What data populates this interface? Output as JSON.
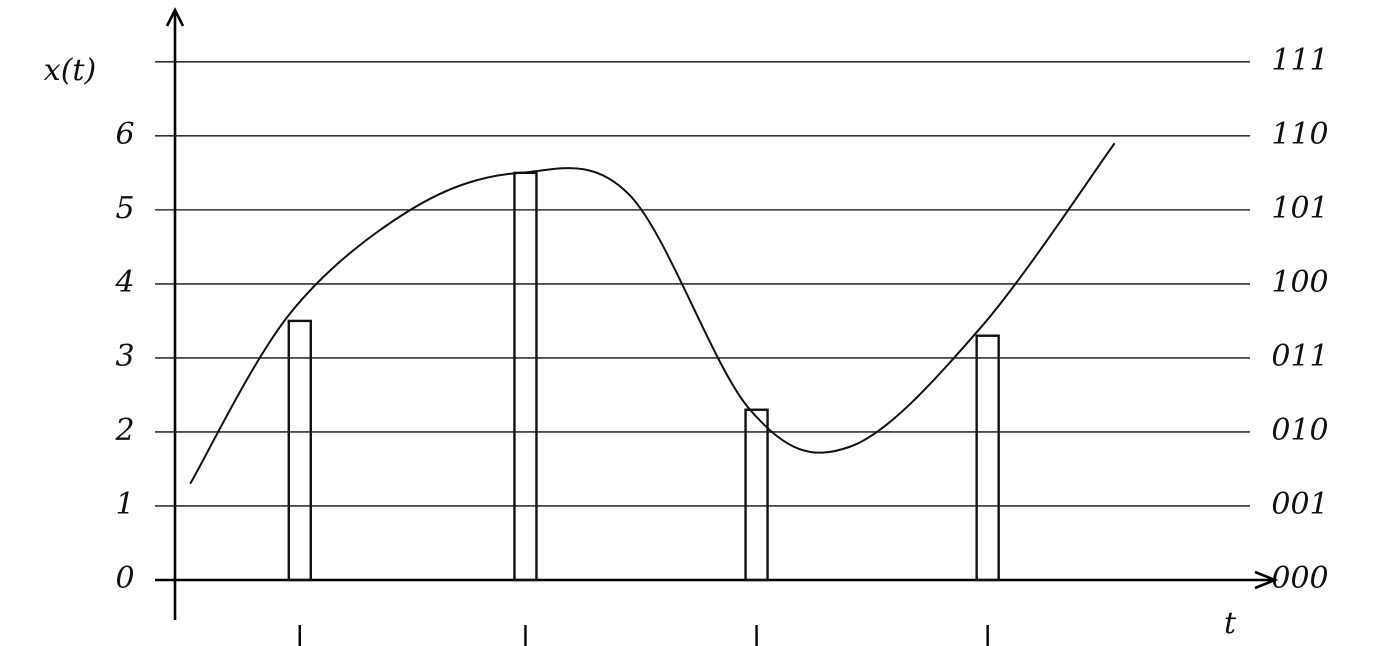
{
  "chart_data": {
    "type": "line",
    "y_label": "x(t)",
    "x_label": "t",
    "xlim": [
      0,
      10
    ],
    "ylim": [
      0,
      7.7
    ],
    "yticks": [
      0,
      1,
      2,
      3,
      4,
      5,
      6
    ],
    "y2lim": [
      0,
      7.7
    ],
    "y2ticks": [
      {
        "value": 0,
        "label": "000"
      },
      {
        "value": 1,
        "label": "001"
      },
      {
        "value": 2,
        "label": "010"
      },
      {
        "value": 3,
        "label": "011"
      },
      {
        "value": 4,
        "label": "100"
      },
      {
        "value": 5,
        "label": "101"
      },
      {
        "value": 6,
        "label": "110"
      },
      {
        "value": 7,
        "label": "111"
      }
    ],
    "grid": true,
    "series": [
      {
        "type": "line",
        "color": "#111111",
        "x": [
          0.14,
          1.06,
          2.17,
          3.18,
          4.19,
          5.3,
          6.22,
          7.42,
          8.66
        ],
        "values": [
          1.3,
          3.6,
          5.0,
          5.5,
          5.2,
          2.3,
          1.8,
          3.4,
          5.9
        ]
      },
      {
        "type": "bar",
        "color": "#111111",
        "x": [
          1.15,
          3.23,
          5.36,
          7.49
        ],
        "values": [
          3.5,
          5.5,
          2.3,
          3.3
        ]
      }
    ]
  }
}
